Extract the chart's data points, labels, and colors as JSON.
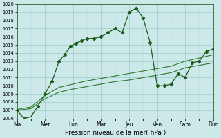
{
  "xlabel": "Pression niveau de la mer( hPa )",
  "xtick_labels": [
    "Ma",
    "Mer",
    "Lun",
    "Mar",
    "Jeu",
    "Ven",
    "Sam",
    "Dim"
  ],
  "ylim": [
    1006,
    1020
  ],
  "yticks": [
    1006,
    1007,
    1008,
    1009,
    1010,
    1011,
    1012,
    1013,
    1014,
    1015,
    1016,
    1017,
    1018,
    1019,
    1020
  ],
  "bg_color": "#cce8e8",
  "grid_color_major": "#99cccc",
  "grid_color_minor": "#bbdddd",
  "line_color_main": "#1a5c1a",
  "line_color_env": "#2d7a2d",
  "main_x": [
    0,
    0.25,
    0.5,
    1.0,
    1.5,
    2.0,
    2.5,
    3.0,
    3.4,
    3.8,
    4.2,
    4.6,
    5.0,
    5.5,
    6.0,
    6.5,
    7.0,
    7.5,
    8.0,
    8.5,
    9.0,
    9.5,
    10.0,
    10.5,
    11.0,
    11.5,
    12.0,
    12.5,
    13.0,
    13.5,
    14.0
  ],
  "main_y": [
    1007.0,
    1006.5,
    1006.0,
    1006.2,
    1007.5,
    1009.0,
    1010.5,
    1013.0,
    1013.8,
    1014.8,
    1015.2,
    1015.5,
    1015.8,
    1015.8,
    1016.0,
    1016.5,
    1017.0,
    1016.5,
    1019.0,
    1019.5,
    1018.3,
    1015.3,
    1010.0,
    1010.0,
    1010.2,
    1011.5,
    1011.0,
    1012.8,
    1013.0,
    1014.2,
    1014.5
  ],
  "env1_x": [
    0,
    1,
    2,
    3,
    4,
    5,
    6,
    7,
    8,
    9,
    10,
    11,
    12,
    13,
    14
  ],
  "env1_y": [
    1007.1,
    1007.4,
    1008.8,
    1009.8,
    1010.2,
    1010.6,
    1010.9,
    1011.2,
    1011.5,
    1011.8,
    1012.1,
    1012.4,
    1013.0,
    1013.4,
    1013.8
  ],
  "env2_x": [
    0,
    1,
    2,
    3,
    4,
    5,
    6,
    7,
    8,
    9,
    10,
    11,
    12,
    13,
    14
  ],
  "env2_y": [
    1007.0,
    1007.2,
    1008.4,
    1009.2,
    1009.6,
    1009.9,
    1010.2,
    1010.5,
    1010.7,
    1011.0,
    1011.3,
    1011.6,
    1012.2,
    1012.5,
    1012.8
  ],
  "marker_x": [
    0,
    0.5,
    1.5,
    2.0,
    2.5,
    3.0,
    3.4,
    3.8,
    4.2,
    4.6,
    5.0,
    5.5,
    6.0,
    6.5,
    7.0,
    7.5,
    8.0,
    8.5,
    9.0,
    9.5,
    10.0,
    10.5,
    11.0,
    11.5,
    12.0,
    12.5,
    13.0,
    13.5,
    14.0
  ],
  "marker_y": [
    1007.0,
    1006.0,
    1007.5,
    1009.0,
    1010.5,
    1013.0,
    1013.8,
    1014.8,
    1015.2,
    1015.5,
    1015.8,
    1015.8,
    1016.0,
    1016.5,
    1017.0,
    1016.5,
    1019.0,
    1019.5,
    1018.3,
    1015.3,
    1010.0,
    1010.0,
    1010.2,
    1011.5,
    1011.0,
    1012.8,
    1013.0,
    1014.2,
    1014.5
  ]
}
